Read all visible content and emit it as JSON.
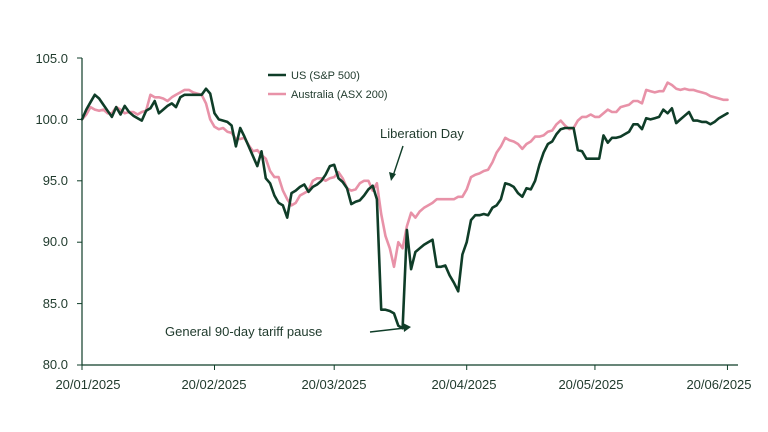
{
  "chart_data": {
    "type": "line",
    "title": "",
    "xlabel": "",
    "ylabel": "",
    "ylim": [
      80,
      105
    ],
    "y_ticks": [
      "80.0",
      "85.0",
      "90.0",
      "95.0",
      "100.0",
      "105.0"
    ],
    "x_ticks": [
      "20/01/2025",
      "20/02/2025",
      "20/03/2025",
      "20/04/2025",
      "20/05/2025",
      "20/06/2025"
    ],
    "x_tick_days": [
      0,
      31,
      59,
      90,
      120,
      151
    ],
    "x_range_days": [
      0,
      153
    ],
    "legend": {
      "position": "top-center"
    },
    "series": [
      {
        "name": "US (S&P 500)",
        "color": "#0f3d28",
        "points": [
          [
            0,
            100
          ],
          [
            1,
            100.8
          ],
          [
            2,
            101.4
          ],
          [
            3,
            102
          ],
          [
            4,
            101.7
          ],
          [
            5,
            101.2
          ],
          [
            6,
            100.7
          ],
          [
            7,
            100.2
          ],
          [
            8,
            101
          ],
          [
            9,
            100.4
          ],
          [
            10,
            101.1
          ],
          [
            11,
            100.6
          ],
          [
            12,
            100.3
          ],
          [
            13,
            100.1
          ],
          [
            14,
            99.9
          ],
          [
            15,
            100.7
          ],
          [
            16,
            100.9
          ],
          [
            17,
            101.5
          ],
          [
            18,
            100.5
          ],
          [
            19,
            100.8
          ],
          [
            20,
            101.1
          ],
          [
            21,
            101.3
          ],
          [
            22,
            101
          ],
          [
            23,
            101.8
          ],
          [
            24,
            102
          ],
          [
            25,
            102
          ],
          [
            26,
            102
          ],
          [
            27,
            102
          ],
          [
            28,
            102
          ],
          [
            29,
            102.5
          ],
          [
            30,
            102.1
          ],
          [
            31,
            100.5
          ],
          [
            32,
            100
          ],
          [
            33,
            99.9
          ],
          [
            34,
            99.8
          ],
          [
            35,
            99.5
          ],
          [
            36,
            97.8
          ],
          [
            37,
            99.3
          ],
          [
            38,
            98.6
          ],
          [
            39,
            97.8
          ],
          [
            40,
            97
          ],
          [
            41,
            96.2
          ],
          [
            42,
            97.4
          ],
          [
            43,
            95.2
          ],
          [
            44,
            94.8
          ],
          [
            45,
            93.8
          ],
          [
            46,
            93.2
          ],
          [
            47,
            93
          ],
          [
            48,
            92
          ],
          [
            49,
            94
          ],
          [
            50,
            94.2
          ],
          [
            51,
            94.5
          ],
          [
            52,
            94.7
          ],
          [
            53,
            94.1
          ],
          [
            54,
            94.5
          ],
          [
            55,
            94.7
          ],
          [
            56,
            95
          ],
          [
            57,
            95.5
          ],
          [
            58,
            96.2
          ],
          [
            59,
            96.3
          ],
          [
            60,
            95.2
          ],
          [
            61,
            94.9
          ],
          [
            62,
            94.4
          ],
          [
            63,
            93.1
          ],
          [
            64,
            93.3
          ],
          [
            65,
            93.4
          ],
          [
            66,
            93.8
          ],
          [
            67,
            94.3
          ],
          [
            68,
            94.6
          ],
          [
            69,
            93.5
          ],
          [
            70,
            84.5
          ],
          [
            71,
            84.5
          ],
          [
            72,
            84.4
          ],
          [
            73,
            84.2
          ],
          [
            74,
            83.2
          ],
          [
            75,
            83
          ],
          [
            76,
            91
          ],
          [
            77,
            87.8
          ],
          [
            78,
            89.2
          ],
          [
            79,
            89.5
          ],
          [
            80,
            89.8
          ],
          [
            81,
            90
          ],
          [
            82,
            90.2
          ],
          [
            83,
            88
          ],
          [
            84,
            88
          ],
          [
            85,
            88.1
          ],
          [
            86,
            87.3
          ],
          [
            87,
            86.7
          ],
          [
            88,
            86
          ],
          [
            89,
            89
          ],
          [
            90,
            90
          ],
          [
            91,
            91.8
          ],
          [
            92,
            92.2
          ],
          [
            93,
            92.2
          ],
          [
            94,
            92.3
          ],
          [
            95,
            92.2
          ],
          [
            96,
            92.8
          ],
          [
            97,
            93
          ],
          [
            98,
            93.5
          ],
          [
            99,
            94.8
          ],
          [
            100,
            94.7
          ],
          [
            101,
            94.5
          ],
          [
            102,
            94
          ],
          [
            103,
            93.7
          ],
          [
            104,
            94.4
          ],
          [
            105,
            94.3
          ],
          [
            106,
            95
          ],
          [
            107,
            96.3
          ],
          [
            108,
            97.3
          ],
          [
            109,
            98
          ],
          [
            110,
            98.2
          ],
          [
            111,
            98.8
          ],
          [
            112,
            99.2
          ],
          [
            113,
            99.3
          ],
          [
            114,
            99.3
          ],
          [
            115,
            99.3
          ],
          [
            116,
            97.5
          ],
          [
            117,
            97.4
          ],
          [
            118,
            96.8
          ],
          [
            119,
            96.8
          ],
          [
            120,
            96.8
          ],
          [
            121,
            96.8
          ],
          [
            122,
            98.7
          ],
          [
            123,
            98.1
          ],
          [
            124,
            98.5
          ],
          [
            125,
            98.5
          ],
          [
            126,
            98.6
          ],
          [
            127,
            98.8
          ],
          [
            128,
            99
          ],
          [
            129,
            99.6
          ],
          [
            130,
            99.6
          ],
          [
            131,
            99.2
          ],
          [
            132,
            100.1
          ],
          [
            133,
            100
          ],
          [
            134,
            100.1
          ],
          [
            135,
            100.2
          ],
          [
            136,
            100.8
          ],
          [
            137,
            100.5
          ],
          [
            138,
            100.9
          ],
          [
            139,
            99.7
          ],
          [
            140,
            100
          ],
          [
            141,
            100.3
          ],
          [
            142,
            100.6
          ],
          [
            143,
            99.9
          ],
          [
            144,
            99.9
          ],
          [
            145,
            99.8
          ],
          [
            146,
            99.8
          ],
          [
            147,
            99.6
          ],
          [
            148,
            99.8
          ],
          [
            149,
            100.1
          ],
          [
            150,
            100.3
          ],
          [
            151,
            100.5
          ]
        ]
      },
      {
        "name": "Australia (ASX 200)",
        "color": "#e892a8",
        "points": [
          [
            0,
            100
          ],
          [
            1,
            100.4
          ],
          [
            2,
            101
          ],
          [
            3,
            100.8
          ],
          [
            4,
            100.7
          ],
          [
            5,
            100.8
          ],
          [
            6,
            100.5
          ],
          [
            7,
            100.5
          ],
          [
            8,
            101
          ],
          [
            9,
            100.8
          ],
          [
            10,
            100.5
          ],
          [
            11,
            100.6
          ],
          [
            12,
            100.6
          ],
          [
            13,
            100.4
          ],
          [
            14,
            100.6
          ],
          [
            15,
            100.7
          ],
          [
            16,
            102
          ],
          [
            17,
            101.8
          ],
          [
            18,
            101.8
          ],
          [
            19,
            101.7
          ],
          [
            20,
            101.5
          ],
          [
            21,
            101.8
          ],
          [
            22,
            102
          ],
          [
            23,
            102.2
          ],
          [
            24,
            102.4
          ],
          [
            25,
            102.4
          ],
          [
            26,
            102.2
          ],
          [
            27,
            102.1
          ],
          [
            28,
            102
          ],
          [
            29,
            101.3
          ],
          [
            30,
            100
          ],
          [
            31,
            99.4
          ],
          [
            32,
            99.2
          ],
          [
            33,
            99.3
          ],
          [
            34,
            99
          ],
          [
            35,
            98.9
          ],
          [
            36,
            98.4
          ],
          [
            37,
            98.4
          ],
          [
            38,
            98.5
          ],
          [
            39,
            97.9
          ],
          [
            40,
            97.4
          ],
          [
            41,
            97.5
          ],
          [
            42,
            97.1
          ],
          [
            43,
            96.8
          ],
          [
            44,
            95.8
          ],
          [
            45,
            95.3
          ],
          [
            46,
            95.3
          ],
          [
            47,
            94.2
          ],
          [
            48,
            93.5
          ],
          [
            49,
            93
          ],
          [
            50,
            93.2
          ],
          [
            51,
            93.8
          ],
          [
            52,
            94
          ],
          [
            53,
            94.2
          ],
          [
            54,
            95
          ],
          [
            55,
            95.2
          ],
          [
            56,
            95.2
          ],
          [
            57,
            95
          ],
          [
            58,
            95.2
          ],
          [
            59,
            95.3
          ],
          [
            60,
            95.7
          ],
          [
            61,
            95.2
          ],
          [
            62,
            94.4
          ],
          [
            63,
            94.2
          ],
          [
            64,
            94.3
          ],
          [
            65,
            94.8
          ],
          [
            66,
            95
          ],
          [
            67,
            95
          ],
          [
            68,
            94.2
          ],
          [
            69,
            94.8
          ],
          [
            70,
            92.3
          ],
          [
            71,
            90.5
          ],
          [
            72,
            89.5
          ],
          [
            73,
            88
          ],
          [
            74,
            90
          ],
          [
            75,
            89.5
          ],
          [
            76,
            91.3
          ],
          [
            77,
            92.4
          ],
          [
            78,
            92
          ],
          [
            79,
            92.5
          ],
          [
            80,
            92.8
          ],
          [
            81,
            93
          ],
          [
            82,
            93.2
          ],
          [
            83,
            93.5
          ],
          [
            84,
            93.5
          ],
          [
            85,
            93.5
          ],
          [
            86,
            93.5
          ],
          [
            87,
            93.5
          ],
          [
            88,
            93.7
          ],
          [
            89,
            93.7
          ],
          [
            90,
            94.3
          ],
          [
            91,
            95.3
          ],
          [
            92,
            95.5
          ],
          [
            93,
            95.6
          ],
          [
            94,
            95.8
          ],
          [
            95,
            95.9
          ],
          [
            96,
            96.5
          ],
          [
            97,
            97.3
          ],
          [
            98,
            97.8
          ],
          [
            99,
            98.5
          ],
          [
            100,
            98.3
          ],
          [
            101,
            98.2
          ],
          [
            102,
            98
          ],
          [
            103,
            97.6
          ],
          [
            104,
            98
          ],
          [
            105,
            98.2
          ],
          [
            106,
            98.6
          ],
          [
            107,
            98.6
          ],
          [
            108,
            98.7
          ],
          [
            109,
            99
          ],
          [
            110,
            99.1
          ],
          [
            111,
            99.6
          ],
          [
            112,
            99.9
          ],
          [
            113,
            99.5
          ],
          [
            114,
            99.2
          ],
          [
            115,
            99.3
          ],
          [
            116,
            99.9
          ],
          [
            117,
            100.2
          ],
          [
            118,
            100.2
          ],
          [
            119,
            100.4
          ],
          [
            120,
            100.2
          ],
          [
            121,
            100.2
          ],
          [
            122,
            100.5
          ],
          [
            123,
            100.8
          ],
          [
            124,
            100.6
          ],
          [
            125,
            100.6
          ],
          [
            126,
            101
          ],
          [
            127,
            101.1
          ],
          [
            128,
            101.2
          ],
          [
            129,
            101.5
          ],
          [
            130,
            101.5
          ],
          [
            131,
            101.3
          ],
          [
            132,
            102.4
          ],
          [
            133,
            102.3
          ],
          [
            134,
            102.2
          ],
          [
            135,
            102.3
          ],
          [
            136,
            102.3
          ],
          [
            137,
            103
          ],
          [
            138,
            102.8
          ],
          [
            139,
            102.5
          ],
          [
            140,
            102.4
          ],
          [
            141,
            102.5
          ],
          [
            142,
            102.4
          ],
          [
            143,
            102.4
          ],
          [
            144,
            102.3
          ],
          [
            145,
            102.2
          ],
          [
            146,
            102.1
          ],
          [
            147,
            101.9
          ],
          [
            148,
            101.8
          ],
          [
            149,
            101.7
          ],
          [
            150,
            101.6
          ],
          [
            151,
            101.6
          ]
        ]
      }
    ],
    "annotations": [
      {
        "text": "Liberation Day",
        "target": [
          68,
          95
        ]
      },
      {
        "text": "General 90-day tariff pause",
        "target": [
          75,
          83
        ]
      }
    ]
  }
}
